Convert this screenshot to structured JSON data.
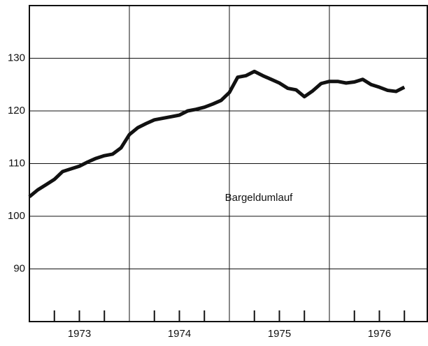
{
  "chart_data": {
    "type": "line",
    "annotation": "Bargeldumlauf",
    "x": [
      1973.0,
      1973.083,
      1973.167,
      1973.25,
      1973.333,
      1973.417,
      1973.5,
      1973.583,
      1973.667,
      1973.75,
      1973.833,
      1973.917,
      1974.0,
      1974.083,
      1974.167,
      1974.25,
      1974.333,
      1974.417,
      1974.5,
      1974.583,
      1974.667,
      1974.75,
      1974.833,
      1974.917,
      1975.0,
      1975.083,
      1975.167,
      1975.25,
      1975.333,
      1975.417,
      1975.5,
      1975.583,
      1975.667,
      1975.75,
      1975.833,
      1975.917,
      1976.0,
      1976.083,
      1976.167,
      1976.25,
      1976.333,
      1976.417,
      1976.5,
      1976.583,
      1976.667,
      1976.75
    ],
    "series": [
      {
        "color": "#111111",
        "values": [
          103.7,
          105,
          106,
          107,
          108.5,
          109,
          109.5,
          110.3,
          111,
          111.5,
          111.8,
          113,
          115.5,
          116.8,
          117.6,
          118.3,
          118.6,
          118.9,
          119.2,
          120,
          120.3,
          120.7,
          121.3,
          122,
          123.5,
          126.4,
          126.7,
          127.5,
          126.7,
          126,
          125.3,
          124.3,
          124,
          122.7,
          123.8,
          125.2,
          125.6,
          125.6,
          125.3,
          125.5,
          126,
          125,
          124.5,
          123.9,
          123.7,
          124.5
        ]
      }
    ],
    "xlim": [
      1973,
      1977
    ],
    "xticks": [
      {
        "value": 1973.5,
        "label": "1973"
      },
      {
        "value": 1974.5,
        "label": "1974"
      },
      {
        "value": 1975.5,
        "label": "1975"
      },
      {
        "value": 1976.5,
        "label": "1976"
      }
    ],
    "xminor": [
      1973.25,
      1973.5,
      1973.75,
      1974.25,
      1974.5,
      1974.75,
      1975.25,
      1975.5,
      1975.75,
      1976.25,
      1976.5,
      1976.75
    ],
    "xgrid": [
      1974,
      1975,
      1976
    ],
    "ylim": [
      80,
      140
    ],
    "yticks": [
      90,
      100,
      110,
      120,
      130
    ],
    "grid": true
  }
}
